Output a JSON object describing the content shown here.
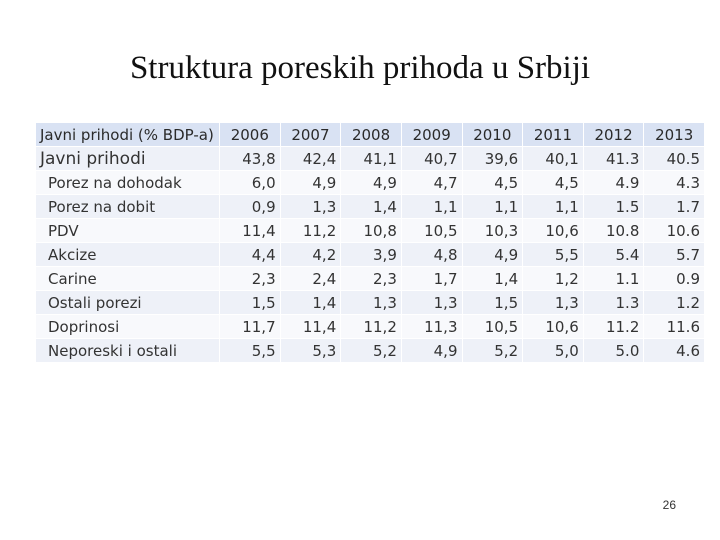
{
  "slide": {
    "title": "Struktura poreskih prihoda u Srbiji",
    "page_number": "26"
  },
  "table": {
    "header_label": "Javni prihodi (% BDP-a)",
    "years": [
      "2006",
      "2007",
      "2008",
      "2009",
      "2010",
      "2011",
      "2012",
      "2013"
    ],
    "rows": [
      {
        "label": "Javni prihodi",
        "values": [
          "43,8",
          "42,4",
          "41,1",
          "40,7",
          "39,6",
          "40,1",
          "41.3",
          "40.5"
        ]
      },
      {
        "label": "Porez na dohodak",
        "values": [
          "6,0",
          "4,9",
          "4,9",
          "4,7",
          "4,5",
          "4,5",
          "4.9",
          "4.3"
        ]
      },
      {
        "label": "Porez na dobit",
        "values": [
          "0,9",
          "1,3",
          "1,4",
          "1,1",
          "1,1",
          "1,1",
          "1.5",
          "1.7"
        ]
      },
      {
        "label": "PDV",
        "values": [
          "11,4",
          "11,2",
          "10,8",
          "10,5",
          "10,3",
          "10,6",
          "10.8",
          "10.6"
        ]
      },
      {
        "label": "Akcize",
        "values": [
          "4,4",
          "4,2",
          "3,9",
          "4,8",
          "4,9",
          "5,5",
          "5.4",
          "5.7"
        ]
      },
      {
        "label": "Carine",
        "values": [
          "2,3",
          "2,4",
          "2,3",
          "1,7",
          "1,4",
          "1,2",
          "1.1",
          "0.9"
        ]
      },
      {
        "label": "Ostali porezi",
        "values": [
          "1,5",
          "1,4",
          "1,3",
          "1,3",
          "1,5",
          "1,3",
          "1.3",
          "1.2"
        ]
      },
      {
        "label": "Doprinosi",
        "values": [
          "11,7",
          "11,4",
          "11,2",
          "11,3",
          "10,5",
          "10,6",
          "11.2",
          "11.6"
        ]
      },
      {
        "label": "Neporeski i ostali",
        "values": [
          "5,5",
          "5,3",
          "5,2",
          "4,9",
          "5,2",
          "5,0",
          "5.0",
          "4.6"
        ]
      }
    ]
  }
}
